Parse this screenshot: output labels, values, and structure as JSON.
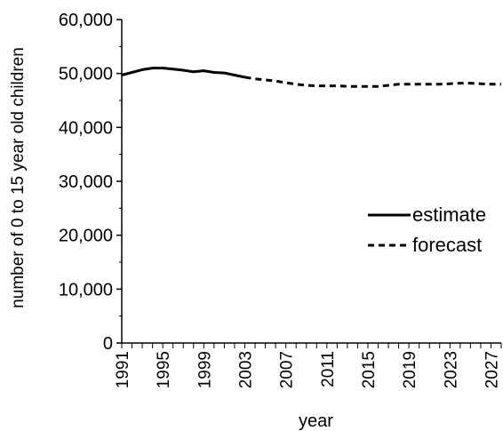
{
  "chart_data": {
    "type": "line",
    "xlabel": "year",
    "ylabel": "number of 0 to 15 year old children",
    "ylim": [
      0,
      60000
    ],
    "xlim": [
      1991,
      2028
    ],
    "yticks": [
      0,
      10000,
      20000,
      30000,
      40000,
      50000,
      60000
    ],
    "ytick_labels": [
      "0",
      "10,000",
      "20,000",
      "30,000",
      "40,000",
      "50,000",
      "60,000"
    ],
    "xticks": [
      1991,
      1995,
      1999,
      2003,
      2007,
      2011,
      2015,
      2019,
      2023,
      2027
    ],
    "xtick_labels": [
      "1991",
      "1995",
      "1999",
      "2003",
      "2007",
      "2011",
      "2015",
      "2019",
      "2023",
      "2027"
    ],
    "grid": false,
    "legend_position": "right",
    "series": [
      {
        "name": "estimate",
        "style": "solid",
        "color": "#000000",
        "x": [
          1991,
          1992,
          1993,
          1994,
          1995,
          1996,
          1997,
          1998,
          1999,
          2000,
          2001,
          2002,
          2003
        ],
        "y": [
          49700,
          50200,
          50700,
          51000,
          51000,
          50800,
          50600,
          50300,
          50500,
          50200,
          50100,
          49700,
          49300
        ]
      },
      {
        "name": "forecast",
        "style": "dashed",
        "color": "#000000",
        "x": [
          2003,
          2004,
          2005,
          2006,
          2007,
          2008,
          2009,
          2010,
          2011,
          2012,
          2013,
          2014,
          2015,
          2016,
          2017,
          2018,
          2019,
          2020,
          2021,
          2022,
          2023,
          2024,
          2025,
          2026,
          2027,
          2028
        ],
        "y": [
          49300,
          49000,
          48800,
          48600,
          48300,
          48000,
          47800,
          47700,
          47700,
          47700,
          47600,
          47600,
          47600,
          47600,
          47800,
          48000,
          48000,
          48000,
          48000,
          48000,
          48100,
          48200,
          48200,
          48100,
          48000,
          48000
        ]
      }
    ]
  }
}
